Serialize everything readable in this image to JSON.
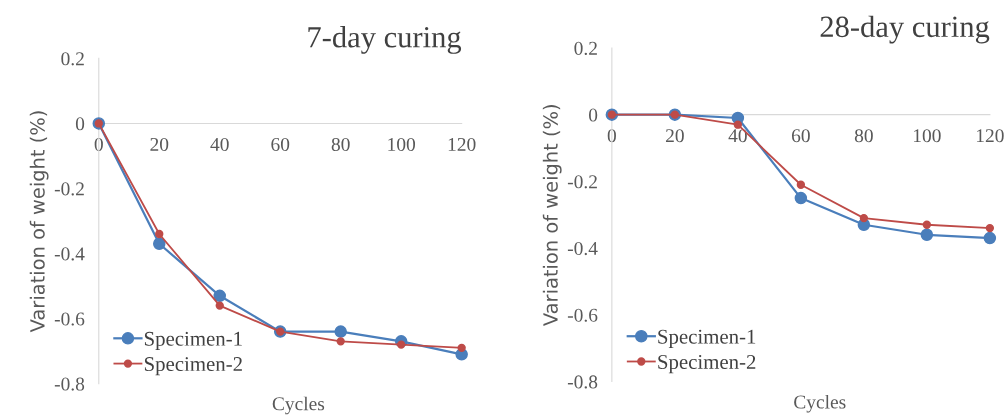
{
  "chart_data": [
    {
      "type": "line",
      "title": "7-day curing",
      "xlabel": "Cycles",
      "ylabel": "Variation of weight (%)",
      "categories": [
        "0",
        "20",
        "40",
        "60",
        "80",
        "100",
        "120"
      ],
      "ylim": [
        -0.8,
        0.2
      ],
      "yticks": [
        -0.8,
        -0.6,
        -0.4,
        -0.2,
        0,
        0.2
      ],
      "grid": false,
      "legend": "bottom left",
      "marker": "circle",
      "line_style": "solid",
      "series": [
        {
          "name": "Specimen-1",
          "color": "#4a7ebb",
          "values": [
            0,
            -0.37,
            -0.53,
            -0.64,
            -0.64,
            -0.67,
            -0.71
          ]
        },
        {
          "name": "Specimen-2",
          "color": "#be4b48",
          "values": [
            0,
            -0.34,
            -0.56,
            -0.64,
            -0.67,
            -0.68,
            -0.69
          ]
        }
      ]
    },
    {
      "type": "line",
      "title": "28-day curing",
      "xlabel": "Cycles",
      "ylabel": "Variation of weight (%)",
      "categories": [
        "0",
        "20",
        "40",
        "60",
        "80",
        "100",
        "120"
      ],
      "ylim": [
        -0.8,
        0.2
      ],
      "yticks": [
        -0.8,
        -0.6,
        -0.4,
        -0.2,
        0,
        0.2
      ],
      "grid": false,
      "legend": "bottom left",
      "marker": "circle",
      "line_style": "solid",
      "series": [
        {
          "name": "Specimen-1",
          "color": "#4a7ebb",
          "values": [
            0,
            0,
            -0.01,
            -0.25,
            -0.33,
            -0.36,
            -0.37
          ]
        },
        {
          "name": "Specimen-2",
          "color": "#be4b48",
          "values": [
            0,
            0,
            -0.03,
            -0.21,
            -0.31,
            -0.33,
            -0.34
          ]
        }
      ]
    }
  ]
}
